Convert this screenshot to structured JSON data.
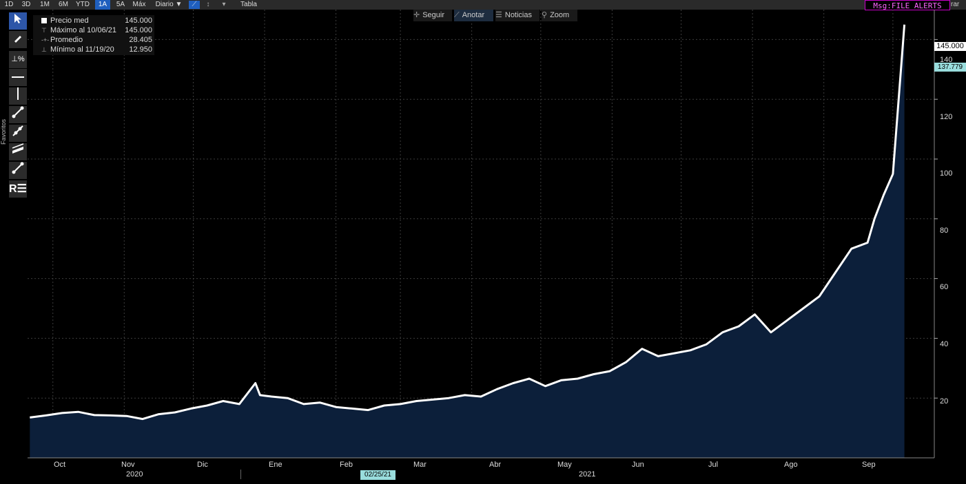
{
  "toolbar": {
    "ranges": [
      "1D",
      "3D",
      "1M",
      "6M",
      "YTD",
      "1A",
      "5A",
      "Máx"
    ],
    "active_range": "1A",
    "frequency": "Diario ▼",
    "table": "Tabla",
    "alert": "Msg:FILE ALERTS",
    "right_cut": "rar"
  },
  "side_panel": {
    "label": "Favoritos"
  },
  "controls": {
    "follow": "Seguir",
    "annotate": "Anotar",
    "news": "Noticias",
    "zoom": "Zoom"
  },
  "legend": {
    "rows": [
      {
        "label": "Precio med",
        "value": "145.000"
      },
      {
        "label": "Máximo al 10/06/21",
        "value": "145.000"
      },
      {
        "label": "Promedio",
        "value": "28.405"
      },
      {
        "label": "Mínimo al 11/19/20",
        "value": "12.950"
      }
    ]
  },
  "colors": {
    "line": "#ffffff",
    "area": "#0c1f3a",
    "grid": "#3d3d3d",
    "accent": "#1f5fbf"
  },
  "chart_data": {
    "type": "area",
    "title": "",
    "xlabel": "",
    "ylabel": "",
    "ylim": [
      0,
      150
    ],
    "y_ticks": [
      20,
      40,
      60,
      80,
      100,
      120,
      140
    ],
    "x_ticks": [
      "Oct",
      "Nov",
      "Dic",
      "Ene",
      "Feb",
      "Mar",
      "Abr",
      "May",
      "Jun",
      "Jul",
      "Ago",
      "Sep"
    ],
    "x_years": [
      "2020",
      "2021"
    ],
    "cursor_date": "02/25/21",
    "last_price": "145.000",
    "average": "137.779",
    "grid": true,
    "series": [
      {
        "name": "Precio med",
        "x": [
          "2020-09-21",
          "2020-09-28",
          "2020-10-05",
          "2020-10-12",
          "2020-10-19",
          "2020-10-26",
          "2020-11-02",
          "2020-11-09",
          "2020-11-16",
          "2020-11-23",
          "2020-11-30",
          "2020-12-07",
          "2020-12-14",
          "2020-12-21",
          "2020-12-28",
          "2020-12-30",
          "2021-01-04",
          "2021-01-11",
          "2021-01-18",
          "2021-01-25",
          "2021-02-01",
          "2021-02-08",
          "2021-02-15",
          "2021-02-22",
          "2021-03-01",
          "2021-03-08",
          "2021-03-15",
          "2021-03-22",
          "2021-03-29",
          "2021-04-05",
          "2021-04-12",
          "2021-04-19",
          "2021-04-26",
          "2021-05-03",
          "2021-05-10",
          "2021-05-17",
          "2021-05-24",
          "2021-05-31",
          "2021-06-07",
          "2021-06-14",
          "2021-06-21",
          "2021-06-28",
          "2021-07-05",
          "2021-07-12",
          "2021-07-19",
          "2021-07-26",
          "2021-08-02",
          "2021-08-09",
          "2021-08-16",
          "2021-08-23",
          "2021-08-30",
          "2021-09-06",
          "2021-09-13",
          "2021-09-20",
          "2021-09-23",
          "2021-09-27",
          "2021-10-01",
          "2021-10-06"
        ],
        "y": [
          13.5,
          14.2,
          15.0,
          15.4,
          14.3,
          14.2,
          14.0,
          13.0,
          14.6,
          15.2,
          16.5,
          17.5,
          19.0,
          18.0,
          25.0,
          21.0,
          20.5,
          20.0,
          18.0,
          18.5,
          17.0,
          16.5,
          16.0,
          17.5,
          18.0,
          19.0,
          19.5,
          20.0,
          21.0,
          20.5,
          23.0,
          25.0,
          26.5,
          24.0,
          26.0,
          26.5,
          28.0,
          29.0,
          32.0,
          36.5,
          34.0,
          35.0,
          36.0,
          38.0,
          42.0,
          44.0,
          48.0,
          42.0,
          46.0,
          50.0,
          54.0,
          62.0,
          70.0,
          72.0,
          80.0,
          88.0,
          95.0,
          145.0
        ]
      }
    ]
  }
}
